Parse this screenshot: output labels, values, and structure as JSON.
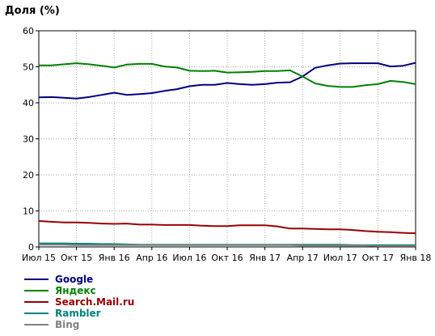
{
  "chart_data": {
    "type": "line",
    "title": "Доля (%)",
    "ylim": [
      0,
      60
    ],
    "yticks": [
      0,
      10,
      20,
      30,
      40,
      50,
      60
    ],
    "grid": true,
    "legend_position": "bottom-left",
    "x_tick_labels": [
      "Июл 15",
      "Окт 15",
      "Янв 16",
      "Апр 16",
      "Июл 16",
      "Окт 16",
      "Янв 17",
      "Апр 17",
      "Июл 17",
      "Окт 17",
      "Янв 18"
    ],
    "x": [
      "Июл 15",
      "Авг 15",
      "Сен 15",
      "Окт 15",
      "Ноя 15",
      "Дек 15",
      "Янв 16",
      "Фев 16",
      "Мар 16",
      "Апр 16",
      "Май 16",
      "Июн 16",
      "Июл 16",
      "Авг 16",
      "Сен 16",
      "Окт 16",
      "Ноя 16",
      "Дек 16",
      "Янв 17",
      "Фев 17",
      "Мар 17",
      "Апр 17",
      "Май 17",
      "Июн 17",
      "Июл 17",
      "Авг 17",
      "Сен 17",
      "Окт 17",
      "Ноя 17",
      "Дек 17",
      "Янв 18"
    ],
    "series": [
      {
        "name": "Google",
        "color": "#000080",
        "values": [
          41.5,
          41.6,
          41.4,
          41.2,
          41.6,
          42.2,
          42.8,
          42.2,
          42.4,
          42.7,
          43.3,
          43.8,
          44.6,
          45.0,
          45.0,
          45.5,
          45.2,
          45.0,
          45.2,
          45.6,
          45.7,
          47.3,
          49.7,
          50.4,
          50.9,
          51.0,
          51.0,
          51.0,
          50.1,
          50.3,
          51.1
        ]
      },
      {
        "name": "Яндекс",
        "color": "#008000",
        "values": [
          50.4,
          50.4,
          50.7,
          51.0,
          50.7,
          50.3,
          49.8,
          50.6,
          50.8,
          50.8,
          50.1,
          49.8,
          48.9,
          48.8,
          48.9,
          48.4,
          48.5,
          48.6,
          48.8,
          48.8,
          49.0,
          47.3,
          45.4,
          44.7,
          44.4,
          44.4,
          44.9,
          45.2,
          46.1,
          45.8,
          45.2
        ]
      },
      {
        "name": "Search.Mail.ru",
        "color": "#990000",
        "values": [
          7.2,
          7.0,
          6.8,
          6.8,
          6.7,
          6.5,
          6.4,
          6.5,
          6.2,
          6.2,
          6.1,
          6.1,
          6.1,
          5.9,
          5.8,
          5.8,
          6.0,
          6.0,
          6.0,
          5.7,
          5.1,
          5.1,
          5.0,
          4.9,
          4.9,
          4.7,
          4.4,
          4.2,
          4.1,
          3.9,
          3.8
        ]
      },
      {
        "name": "Rambler",
        "color": "#008080",
        "values": [
          1.0,
          1.0,
          1.0,
          0.9,
          0.9,
          0.8,
          0.8,
          0.7,
          0.6,
          0.6,
          0.6,
          0.6,
          0.6,
          0.6,
          0.6,
          0.6,
          0.6,
          0.6,
          0.6,
          0.6,
          0.6,
          0.6,
          0.6,
          0.6,
          0.6,
          0.5,
          0.5,
          0.5,
          0.5,
          0.5,
          0.5
        ]
      },
      {
        "name": "Bing",
        "color": "#808080",
        "values": [
          0.6,
          0.6,
          0.6,
          0.5,
          0.5,
          0.5,
          0.5,
          0.5,
          0.5,
          0.5,
          0.5,
          0.5,
          0.5,
          0.5,
          0.5,
          0.5,
          0.5,
          0.5,
          0.5,
          0.5,
          0.5,
          0.4,
          0.4,
          0.4,
          0.4,
          0.4,
          0.4,
          0.3,
          0.3,
          0.3,
          0.3
        ]
      }
    ]
  }
}
